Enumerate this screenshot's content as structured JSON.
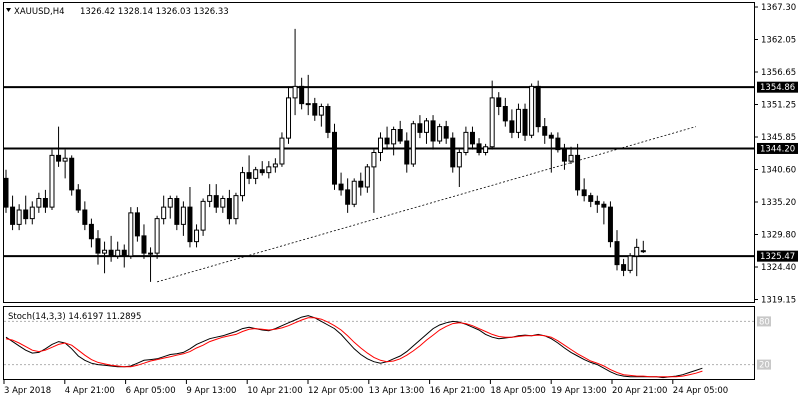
{
  "chart_data": [
    {
      "type": "candlestick",
      "header": {
        "symbol": "XAUUSD,H4",
        "ohlc": "1326.42 1328.14 1326.03 1326.33"
      },
      "ylim": [
        1317.5,
        1369.5
      ],
      "y_ticks": [
        "1367.30",
        "1362.05",
        "1356.65",
        "1351.25",
        "1345.85",
        "1340.60",
        "1335.20",
        "1329.80",
        "1324.40",
        "1319.15"
      ],
      "x_ticks": [
        "3 Apr 2018",
        "4 Apr 21:00",
        "6 Apr 05:00",
        "9 Apr 13:00",
        "10 Apr 21:00",
        "12 Apr 05:00",
        "13 Apr 13:00",
        "16 Apr 21:00",
        "18 Apr 05:00",
        "19 Apr 13:00",
        "20 Apr 21:00",
        "24 Apr 05:00"
      ],
      "levels": [
        {
          "label": "1354.86",
          "value": 1354.86
        },
        {
          "label": "1344.20",
          "value": 1344.2
        },
        {
          "label": "1325.47",
          "value": 1325.47
        }
      ],
      "trendline": {
        "from": {
          "index": 23,
          "price": 1321.0
        },
        "to": {
          "index": 105,
          "price": 1348.0
        },
        "style": "dotted"
      },
      "candles": [
        {
          "o": 1339.0,
          "h": 1340.5,
          "l": 1333.0,
          "c": 1334.0
        },
        {
          "o": 1334.0,
          "h": 1336.0,
          "l": 1330.0,
          "c": 1331.0
        },
        {
          "o": 1331.0,
          "h": 1334.5,
          "l": 1330.0,
          "c": 1333.5
        },
        {
          "o": 1333.5,
          "h": 1336.0,
          "l": 1331.0,
          "c": 1332.0
        },
        {
          "o": 1332.0,
          "h": 1335.0,
          "l": 1331.0,
          "c": 1334.0
        },
        {
          "o": 1334.0,
          "h": 1336.5,
          "l": 1333.0,
          "c": 1335.5
        },
        {
          "o": 1335.5,
          "h": 1337.0,
          "l": 1333.0,
          "c": 1334.0
        },
        {
          "o": 1334.0,
          "h": 1344.0,
          "l": 1333.5,
          "c": 1343.0
        },
        {
          "o": 1343.0,
          "h": 1348.0,
          "l": 1341.0,
          "c": 1342.0
        },
        {
          "o": 1342.0,
          "h": 1344.0,
          "l": 1339.0,
          "c": 1342.5
        },
        {
          "o": 1342.5,
          "h": 1343.0,
          "l": 1336.0,
          "c": 1337.0
        },
        {
          "o": 1337.0,
          "h": 1338.0,
          "l": 1333.0,
          "c": 1333.5
        },
        {
          "o": 1333.5,
          "h": 1335.0,
          "l": 1330.0,
          "c": 1331.0
        },
        {
          "o": 1331.0,
          "h": 1332.0,
          "l": 1327.0,
          "c": 1328.5
        },
        {
          "o": 1328.5,
          "h": 1330.0,
          "l": 1324.0,
          "c": 1326.0
        },
        {
          "o": 1326.0,
          "h": 1328.0,
          "l": 1322.5,
          "c": 1326.5
        },
        {
          "o": 1326.5,
          "h": 1329.0,
          "l": 1324.5,
          "c": 1325.5
        },
        {
          "o": 1325.5,
          "h": 1328.0,
          "l": 1325.0,
          "c": 1326.5
        },
        {
          "o": 1326.5,
          "h": 1327.5,
          "l": 1323.5,
          "c": 1325.5
        },
        {
          "o": 1325.5,
          "h": 1334.0,
          "l": 1325.0,
          "c": 1333.0
        },
        {
          "o": 1333.0,
          "h": 1334.0,
          "l": 1328.0,
          "c": 1329.0
        },
        {
          "o": 1329.0,
          "h": 1331.0,
          "l": 1325.0,
          "c": 1326.0
        },
        {
          "o": 1326.0,
          "h": 1327.0,
          "l": 1321.0,
          "c": 1326.0
        },
        {
          "o": 1326.0,
          "h": 1332.5,
          "l": 1325.0,
          "c": 1332.0
        },
        {
          "o": 1332.0,
          "h": 1336.0,
          "l": 1331.0,
          "c": 1334.0
        },
        {
          "o": 1334.0,
          "h": 1336.0,
          "l": 1332.0,
          "c": 1335.5
        },
        {
          "o": 1335.5,
          "h": 1336.0,
          "l": 1330.0,
          "c": 1331.0
        },
        {
          "o": 1331.0,
          "h": 1335.0,
          "l": 1329.0,
          "c": 1334.0
        },
        {
          "o": 1334.0,
          "h": 1337.5,
          "l": 1327.0,
          "c": 1328.0
        },
        {
          "o": 1328.0,
          "h": 1331.0,
          "l": 1327.0,
          "c": 1330.0
        },
        {
          "o": 1330.0,
          "h": 1335.5,
          "l": 1329.0,
          "c": 1335.0
        },
        {
          "o": 1335.0,
          "h": 1338.0,
          "l": 1334.0,
          "c": 1336.0
        },
        {
          "o": 1336.0,
          "h": 1338.0,
          "l": 1333.0,
          "c": 1334.0
        },
        {
          "o": 1334.0,
          "h": 1336.0,
          "l": 1333.0,
          "c": 1335.5
        },
        {
          "o": 1335.5,
          "h": 1337.0,
          "l": 1331.0,
          "c": 1332.0
        },
        {
          "o": 1332.0,
          "h": 1336.5,
          "l": 1331.0,
          "c": 1336.0
        },
        {
          "o": 1336.0,
          "h": 1341.0,
          "l": 1335.0,
          "c": 1340.0
        },
        {
          "o": 1340.0,
          "h": 1343.0,
          "l": 1338.0,
          "c": 1339.0
        },
        {
          "o": 1339.0,
          "h": 1341.0,
          "l": 1338.0,
          "c": 1340.5
        },
        {
          "o": 1340.5,
          "h": 1342.0,
          "l": 1339.5,
          "c": 1340.0
        },
        {
          "o": 1340.0,
          "h": 1342.0,
          "l": 1339.0,
          "c": 1341.0
        },
        {
          "o": 1341.0,
          "h": 1342.5,
          "l": 1340.0,
          "c": 1341.5
        },
        {
          "o": 1341.5,
          "h": 1347.0,
          "l": 1341.0,
          "c": 1346.0
        },
        {
          "o": 1346.0,
          "h": 1355.0,
          "l": 1345.0,
          "c": 1353.0
        },
        {
          "o": 1353.0,
          "h": 1365.0,
          "l": 1350.0,
          "c": 1355.0
        },
        {
          "o": 1355.0,
          "h": 1356.5,
          "l": 1351.0,
          "c": 1352.0
        },
        {
          "o": 1352.0,
          "h": 1357.0,
          "l": 1350.0,
          "c": 1352.0
        },
        {
          "o": 1352.0,
          "h": 1353.0,
          "l": 1349.0,
          "c": 1350.0
        },
        {
          "o": 1350.0,
          "h": 1352.0,
          "l": 1348.0,
          "c": 1351.5
        },
        {
          "o": 1351.5,
          "h": 1352.0,
          "l": 1346.0,
          "c": 1347.0
        },
        {
          "o": 1347.0,
          "h": 1348.5,
          "l": 1337.0,
          "c": 1338.0
        },
        {
          "o": 1338.0,
          "h": 1340.0,
          "l": 1336.0,
          "c": 1337.0
        },
        {
          "o": 1337.0,
          "h": 1339.0,
          "l": 1333.0,
          "c": 1334.5
        },
        {
          "o": 1334.5,
          "h": 1339.0,
          "l": 1334.0,
          "c": 1338.5
        },
        {
          "o": 1338.5,
          "h": 1340.0,
          "l": 1336.0,
          "c": 1337.5
        },
        {
          "o": 1337.5,
          "h": 1341.5,
          "l": 1336.5,
          "c": 1341.0
        },
        {
          "o": 1341.0,
          "h": 1344.0,
          "l": 1333.0,
          "c": 1343.5
        },
        {
          "o": 1343.5,
          "h": 1347.0,
          "l": 1342.0,
          "c": 1346.0
        },
        {
          "o": 1346.0,
          "h": 1348.0,
          "l": 1344.0,
          "c": 1345.0
        },
        {
          "o": 1345.0,
          "h": 1348.0,
          "l": 1343.0,
          "c": 1347.5
        },
        {
          "o": 1347.5,
          "h": 1349.0,
          "l": 1345.0,
          "c": 1345.5
        },
        {
          "o": 1345.5,
          "h": 1347.0,
          "l": 1340.0,
          "c": 1341.5
        },
        {
          "o": 1341.5,
          "h": 1349.0,
          "l": 1341.0,
          "c": 1348.5
        },
        {
          "o": 1348.5,
          "h": 1350.0,
          "l": 1346.0,
          "c": 1347.0
        },
        {
          "o": 1347.0,
          "h": 1349.5,
          "l": 1345.0,
          "c": 1349.0
        },
        {
          "o": 1349.0,
          "h": 1350.0,
          "l": 1344.0,
          "c": 1345.5
        },
        {
          "o": 1345.5,
          "h": 1348.5,
          "l": 1345.0,
          "c": 1348.0
        },
        {
          "o": 1348.0,
          "h": 1349.0,
          "l": 1345.0,
          "c": 1346.0
        },
        {
          "o": 1346.0,
          "h": 1347.0,
          "l": 1340.0,
          "c": 1341.0
        },
        {
          "o": 1341.0,
          "h": 1344.0,
          "l": 1337.5,
          "c": 1343.5
        },
        {
          "o": 1343.5,
          "h": 1348.0,
          "l": 1343.0,
          "c": 1347.0
        },
        {
          "o": 1347.0,
          "h": 1348.0,
          "l": 1344.0,
          "c": 1345.0
        },
        {
          "o": 1345.0,
          "h": 1346.0,
          "l": 1343.0,
          "c": 1343.5
        },
        {
          "o": 1343.5,
          "h": 1345.0,
          "l": 1343.0,
          "c": 1344.5
        },
        {
          "o": 1344.5,
          "h": 1356.0,
          "l": 1344.0,
          "c": 1353.0
        },
        {
          "o": 1353.0,
          "h": 1354.0,
          "l": 1350.0,
          "c": 1351.5
        },
        {
          "o": 1351.5,
          "h": 1353.0,
          "l": 1348.0,
          "c": 1349.0
        },
        {
          "o": 1349.0,
          "h": 1351.0,
          "l": 1346.0,
          "c": 1347.0
        },
        {
          "o": 1347.0,
          "h": 1352.0,
          "l": 1346.0,
          "c": 1351.0
        },
        {
          "o": 1351.0,
          "h": 1352.0,
          "l": 1345.5,
          "c": 1346.5
        },
        {
          "o": 1346.5,
          "h": 1355.5,
          "l": 1346.0,
          "c": 1355.0
        },
        {
          "o": 1355.0,
          "h": 1356.0,
          "l": 1347.0,
          "c": 1348.0
        },
        {
          "o": 1348.0,
          "h": 1349.5,
          "l": 1345.0,
          "c": 1346.5
        },
        {
          "o": 1346.5,
          "h": 1347.0,
          "l": 1340.0,
          "c": 1346.0
        },
        {
          "o": 1346.0,
          "h": 1347.0,
          "l": 1343.5,
          "c": 1344.0
        },
        {
          "o": 1344.0,
          "h": 1345.0,
          "l": 1340.5,
          "c": 1342.0
        },
        {
          "o": 1342.0,
          "h": 1344.5,
          "l": 1341.5,
          "c": 1343.0
        },
        {
          "o": 1343.0,
          "h": 1345.0,
          "l": 1336.0,
          "c": 1337.0
        },
        {
          "o": 1337.0,
          "h": 1339.0,
          "l": 1335.0,
          "c": 1336.0
        },
        {
          "o": 1336.0,
          "h": 1336.5,
          "l": 1334.0,
          "c": 1335.0
        },
        {
          "o": 1335.0,
          "h": 1336.0,
          "l": 1333.0,
          "c": 1334.5
        },
        {
          "o": 1334.5,
          "h": 1335.0,
          "l": 1331.0,
          "c": 1334.0
        },
        {
          "o": 1334.0,
          "h": 1335.0,
          "l": 1327.0,
          "c": 1328.0
        },
        {
          "o": 1328.0,
          "h": 1330.0,
          "l": 1323.0,
          "c": 1324.0
        },
        {
          "o": 1324.0,
          "h": 1325.0,
          "l": 1322.0,
          "c": 1323.0
        },
        {
          "o": 1323.0,
          "h": 1326.0,
          "l": 1322.5,
          "c": 1325.5
        },
        {
          "o": 1325.5,
          "h": 1328.5,
          "l": 1322.0,
          "c": 1327.0
        },
        {
          "o": 1326.42,
          "h": 1328.14,
          "l": 1326.03,
          "c": 1326.33
        }
      ]
    },
    {
      "type": "line",
      "header": "Stoch(14,3,3) 14.6197 11.2895",
      "ylim": [
        0,
        100
      ],
      "y_ticks": [
        "80",
        "20"
      ],
      "reference_lines": [
        80,
        20
      ],
      "series": [
        {
          "color": "#000000",
          "values": [
            58,
            52,
            46,
            40,
            36,
            37,
            42,
            48,
            52,
            50,
            42,
            32,
            26,
            22,
            20,
            19,
            18,
            17,
            17,
            18,
            22,
            26,
            27,
            28,
            31,
            34,
            35,
            37,
            42,
            48,
            52,
            56,
            58,
            60,
            63,
            66,
            70,
            72,
            70,
            68,
            67,
            70,
            74,
            78,
            82,
            86,
            88,
            85,
            80,
            75,
            70,
            62,
            52,
            42,
            34,
            28,
            24,
            22,
            24,
            28,
            32,
            38,
            46,
            54,
            62,
            70,
            75,
            78,
            80,
            79,
            76,
            72,
            68,
            62,
            58,
            56,
            57,
            58,
            60,
            61,
            60,
            62,
            60,
            56,
            50,
            43,
            37,
            32,
            27,
            23,
            20,
            15,
            10,
            6,
            4,
            3,
            3,
            3,
            3,
            3,
            2,
            3,
            4,
            6,
            9,
            12,
            15
          ]
        },
        {
          "color": "#ff0000",
          "values": [
            56,
            54,
            50,
            45,
            40,
            38,
            40,
            44,
            48,
            50,
            47,
            40,
            33,
            27,
            23,
            21,
            19,
            18,
            17,
            17,
            19,
            22,
            25,
            27,
            29,
            31,
            33,
            35,
            38,
            43,
            47,
            52,
            55,
            58,
            60,
            62,
            66,
            69,
            70,
            69,
            68,
            69,
            71,
            74,
            78,
            82,
            85,
            85,
            83,
            79,
            74,
            68,
            60,
            51,
            43,
            36,
            30,
            26,
            24,
            25,
            28,
            33,
            39,
            46,
            54,
            61,
            68,
            73,
            77,
            78,
            77,
            74,
            70,
            66,
            62,
            59,
            58,
            58,
            59,
            60,
            60,
            61,
            60,
            58,
            53,
            47,
            41,
            35,
            30,
            25,
            22,
            18,
            13,
            9,
            6,
            5,
            4,
            4,
            3,
            3,
            3,
            3,
            3,
            4,
            6,
            8,
            11
          ]
        }
      ]
    }
  ]
}
